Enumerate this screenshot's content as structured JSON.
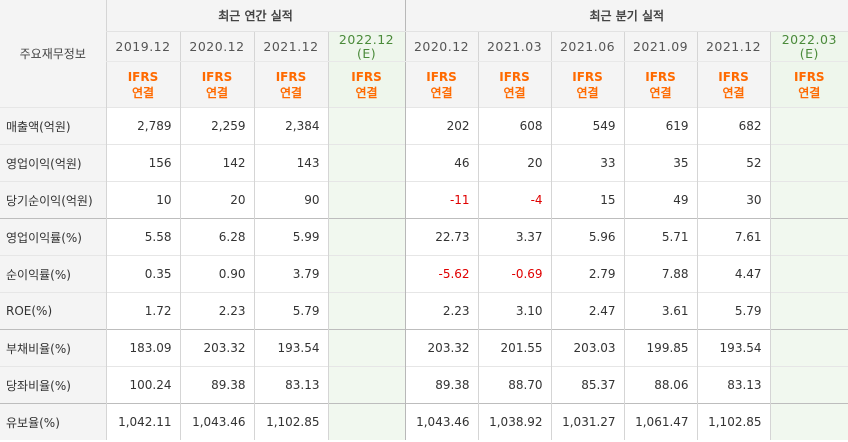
{
  "header": {
    "row_label": "주요재무정보",
    "annual_group": "최근 연간 실적",
    "quarter_group": "최근 분기 실적",
    "annual_periods": [
      "2019.12",
      "2020.12",
      "2021.12",
      "2022.12"
    ],
    "annual_estimate_tag": "(E)",
    "quarter_periods": [
      "2020.12",
      "2021.03",
      "2021.06",
      "2021.09",
      "2021.12",
      "2022.03"
    ],
    "quarter_estimate_tag": "(E)",
    "std_top": "IFRS",
    "std_bottom": "연결"
  },
  "rows": [
    {
      "label": "매출액(억원)",
      "annual": [
        "2,789",
        "2,259",
        "2,384",
        ""
      ],
      "quarter": [
        "202",
        "608",
        "549",
        "619",
        "682",
        ""
      ]
    },
    {
      "label": "영업이익(억원)",
      "annual": [
        "156",
        "142",
        "143",
        ""
      ],
      "quarter": [
        "46",
        "20",
        "33",
        "35",
        "52",
        ""
      ]
    },
    {
      "label": "당기순이익(억원)",
      "annual": [
        "10",
        "20",
        "90",
        ""
      ],
      "quarter": [
        "-11",
        "-4",
        "15",
        "49",
        "30",
        ""
      ]
    },
    {
      "label": "영업이익률(%)",
      "annual": [
        "5.58",
        "6.28",
        "5.99",
        ""
      ],
      "quarter": [
        "22.73",
        "3.37",
        "5.96",
        "5.71",
        "7.61",
        ""
      ]
    },
    {
      "label": "순이익률(%)",
      "annual": [
        "0.35",
        "0.90",
        "3.79",
        ""
      ],
      "quarter": [
        "-5.62",
        "-0.69",
        "2.79",
        "7.88",
        "4.47",
        ""
      ]
    },
    {
      "label": "ROE(%)",
      "annual": [
        "1.72",
        "2.23",
        "5.79",
        ""
      ],
      "quarter": [
        "2.23",
        "3.10",
        "2.47",
        "3.61",
        "5.79",
        ""
      ]
    },
    {
      "label": "부채비율(%)",
      "annual": [
        "183.09",
        "203.32",
        "193.54",
        ""
      ],
      "quarter": [
        "203.32",
        "201.55",
        "203.03",
        "199.85",
        "193.54",
        ""
      ]
    },
    {
      "label": "당좌비율(%)",
      "annual": [
        "100.24",
        "89.38",
        "83.13",
        ""
      ],
      "quarter": [
        "89.38",
        "88.70",
        "85.37",
        "88.06",
        "83.13",
        ""
      ]
    },
    {
      "label": "유보율(%)",
      "annual": [
        "1,042.11",
        "1,043.46",
        "1,102.85",
        ""
      ],
      "quarter": [
        "1,043.46",
        "1,038.92",
        "1,031.27",
        "1,061.47",
        "1,102.85",
        ""
      ]
    }
  ],
  "colors": {
    "accent_orange": "#ff6a00",
    "negative_red": "#e00000",
    "estimate_bg": "#f1f8ef"
  }
}
